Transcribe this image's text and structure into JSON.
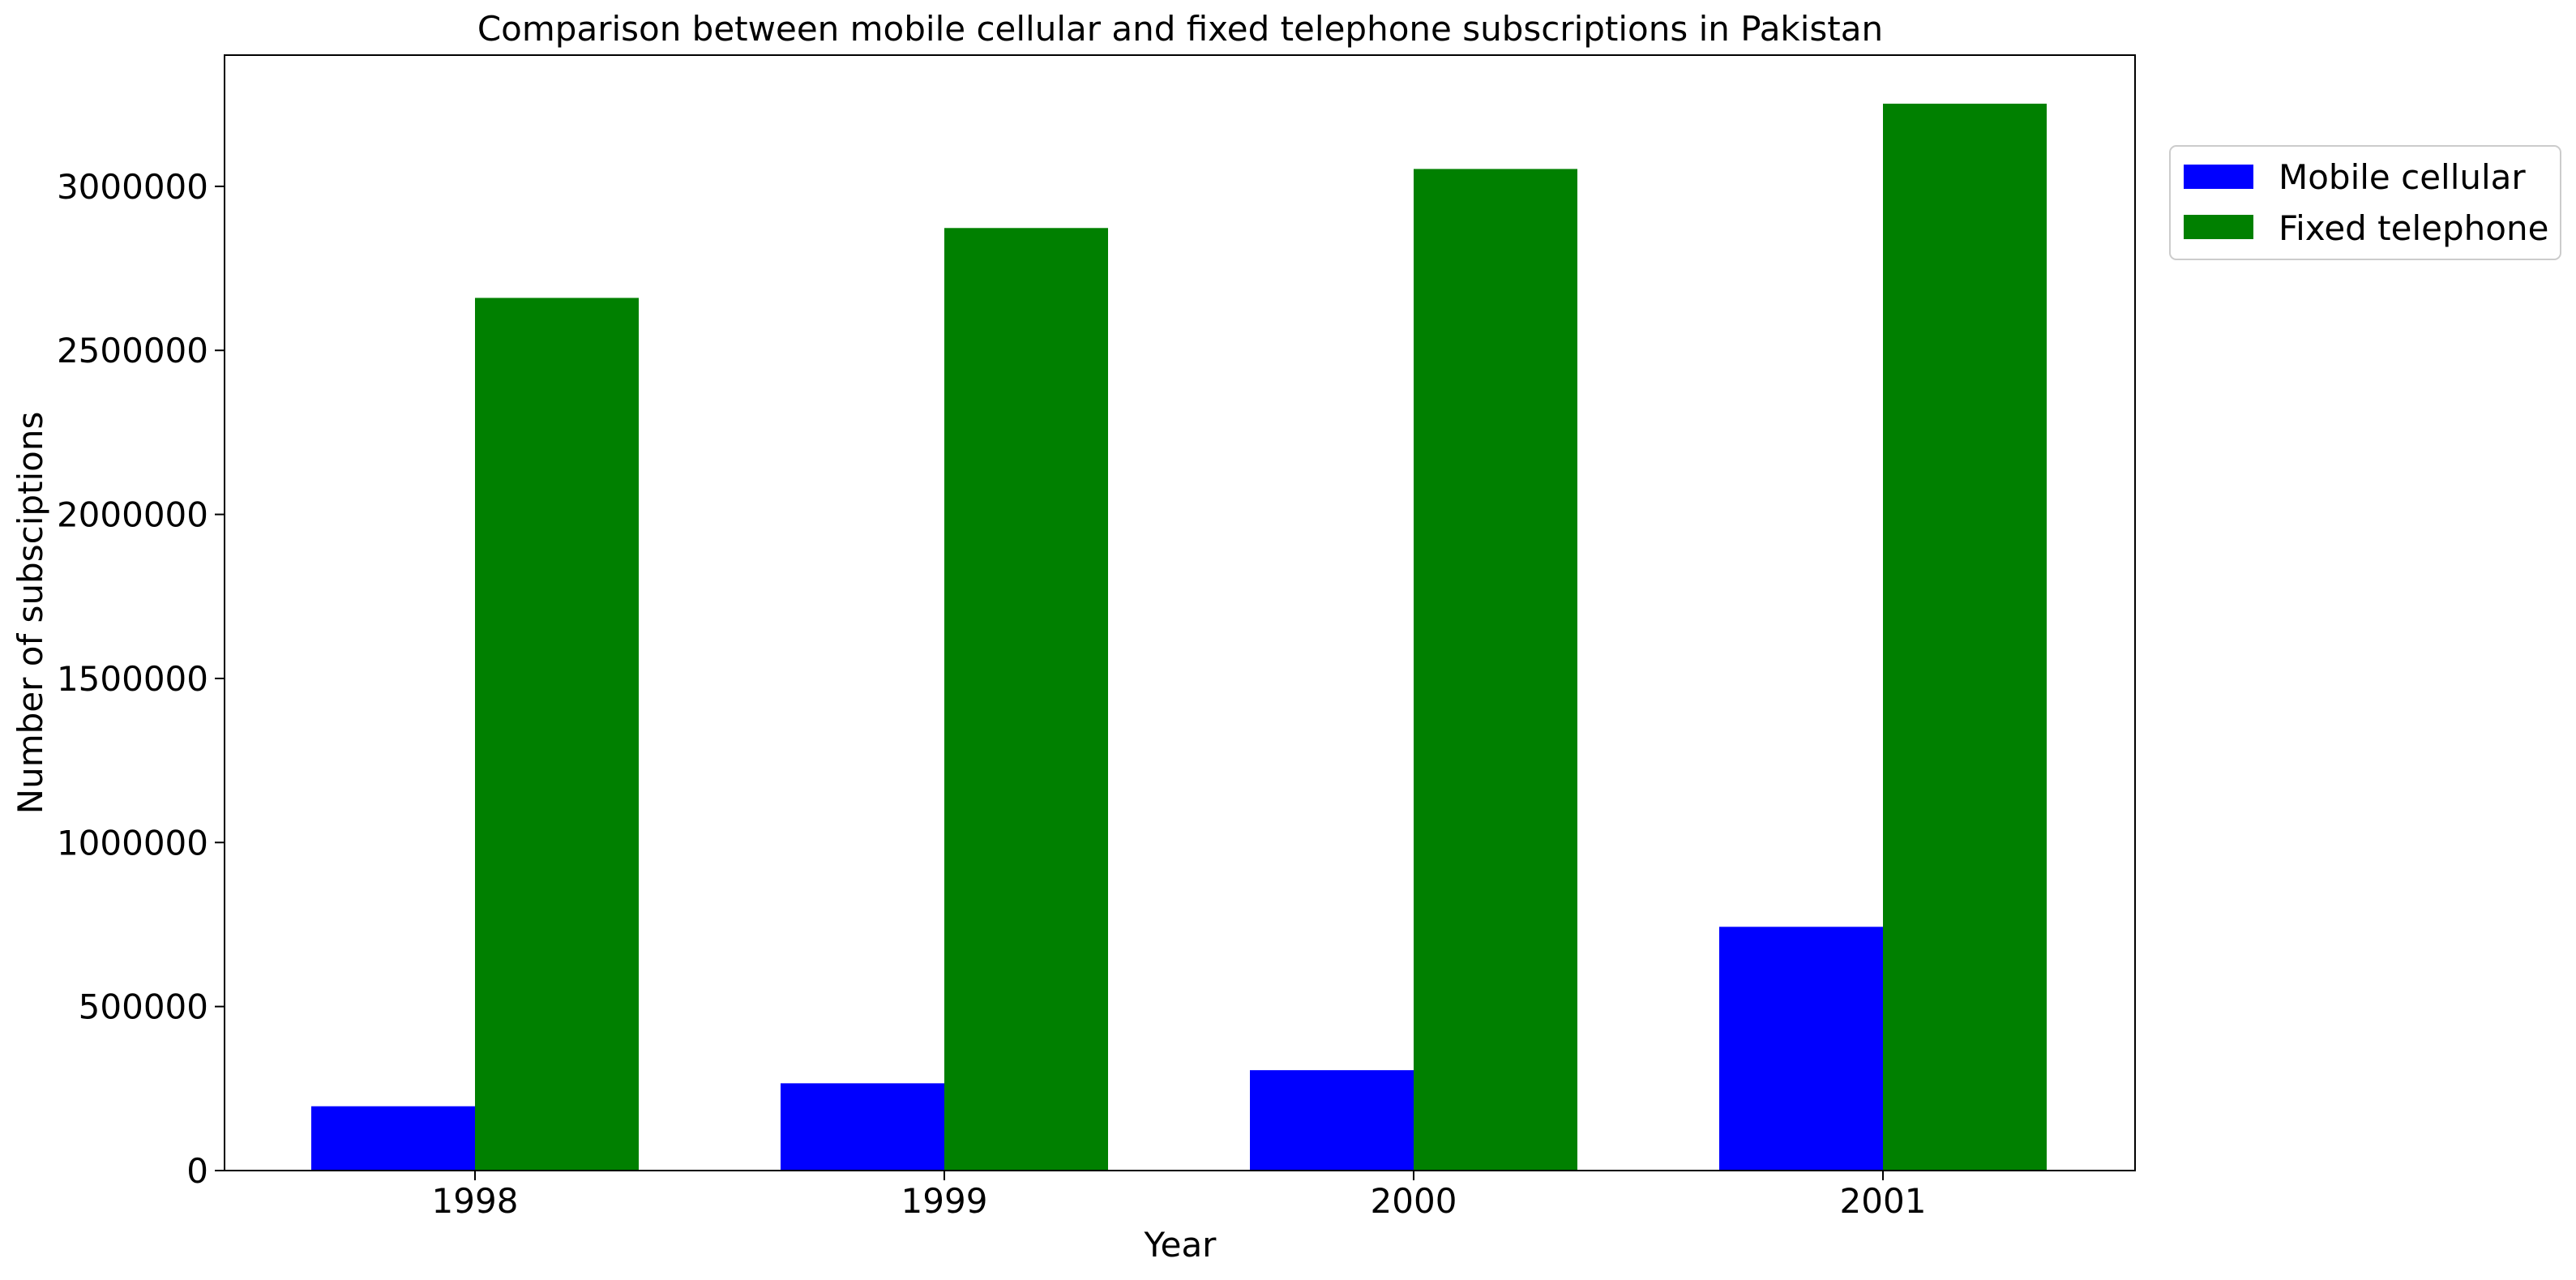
{
  "chart_data": {
    "type": "bar",
    "title": "Comparison between mobile cellular and fixed telephone subscriptions in Pakistan",
    "xlabel": "Year",
    "ylabel": "Number of subsciptions",
    "categories": [
      "1998",
      "1999",
      "2000",
      "2001"
    ],
    "series": [
      {
        "name": "Mobile cellular",
        "color": "#0000ff",
        "values": [
          196000,
          266000,
          306000,
          743000
        ]
      },
      {
        "name": "Fixed telephone",
        "color": "#008000",
        "values": [
          2660000,
          2873000,
          3053000,
          3252000
        ]
      }
    ],
    "ylim": [
      0,
      3400000
    ],
    "yticks": [
      "0",
      "500000",
      "1000000",
      "1500000",
      "2000000",
      "2500000",
      "3000000"
    ],
    "grid": false,
    "legend_position": "upper-right-outside"
  }
}
